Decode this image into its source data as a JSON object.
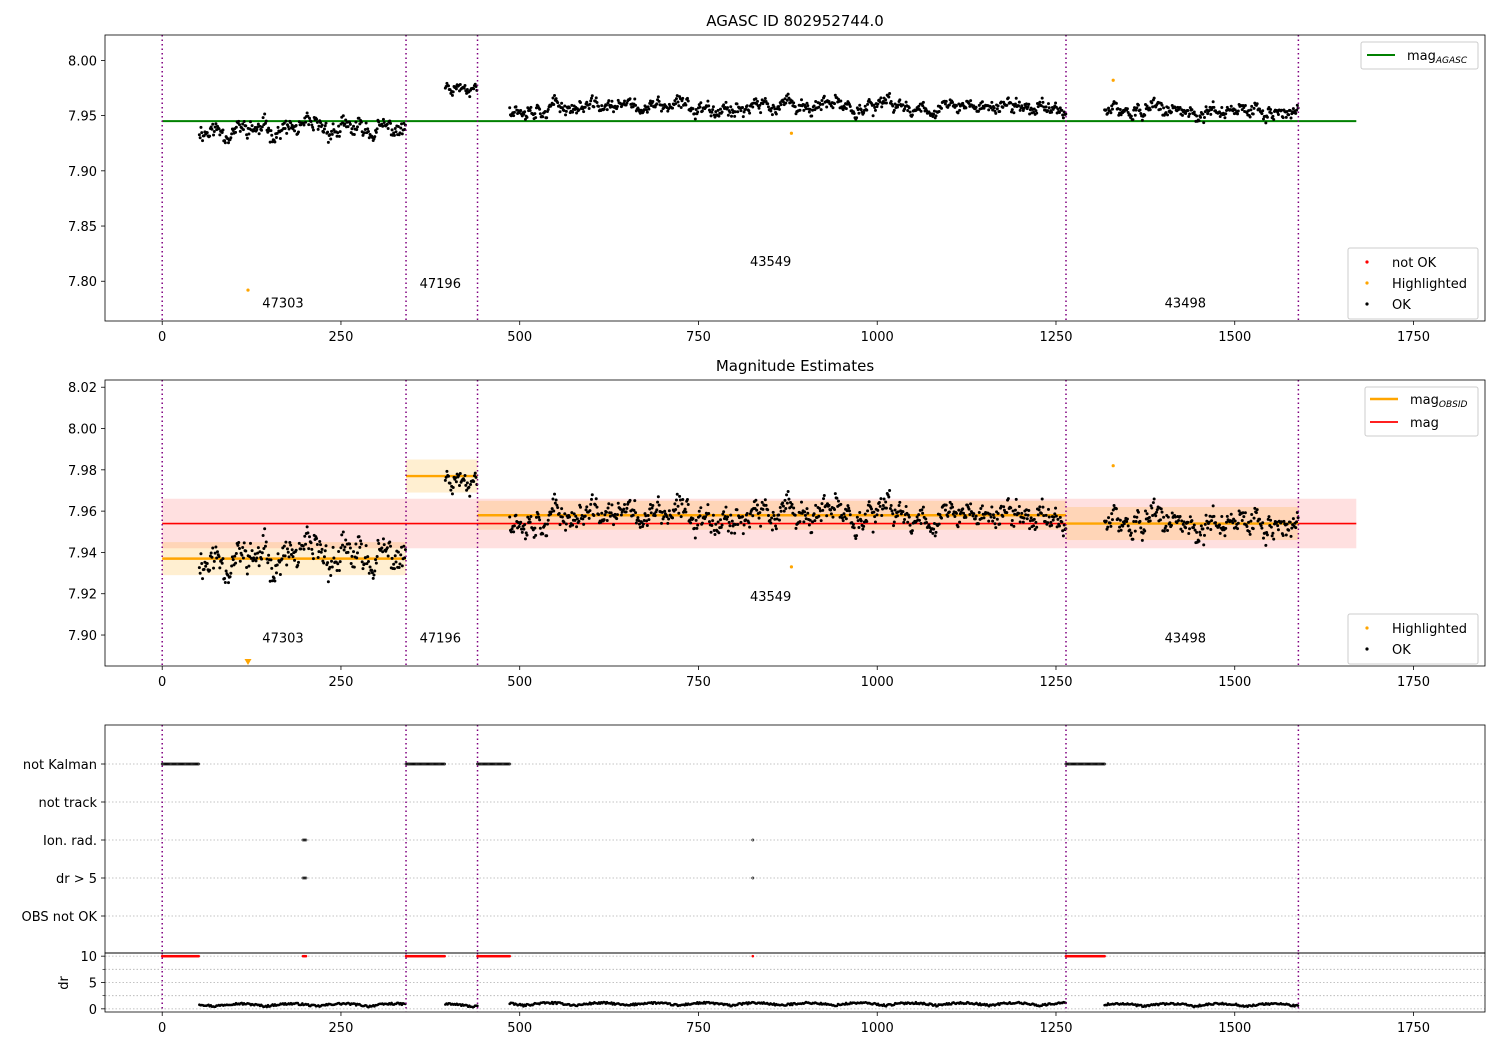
{
  "chart_data": [
    {
      "type": "scatter",
      "title": "AGASC ID 802952744.0",
      "xlabel": "",
      "ylabel": "",
      "xlim": [
        -80,
        1850
      ],
      "ylim": [
        7.764,
        8.023
      ],
      "x_ticks": [
        0,
        250,
        500,
        750,
        1000,
        1250,
        1500,
        1750
      ],
      "y_ticks": [
        7.8,
        7.85,
        7.9,
        7.95,
        8.0
      ],
      "reference_lines": [
        {
          "name": "mag",
          "subscript": "AGASC",
          "value": 7.945,
          "color": "#008000"
        }
      ],
      "obsid_boundaries": [
        0,
        341,
        441,
        1264,
        1589
      ],
      "obsid_labels": [
        {
          "text": "47303",
          "x": 140,
          "y": 7.776
        },
        {
          "text": "47196",
          "x": 360,
          "y": 7.794
        },
        {
          "text": "43549",
          "x": 822,
          "y": 7.814
        },
        {
          "text": "43498",
          "x": 1402,
          "y": 7.776
        }
      ],
      "highlighted_points": [
        [
          120,
          7.792
        ],
        [
          880,
          7.934
        ],
        [
          1330,
          7.982
        ]
      ],
      "legend_points": [
        {
          "label": "not OK",
          "color": "#ff0000"
        },
        {
          "label": "Highlighted",
          "color": "#ffa500"
        },
        {
          "label": "OK",
          "color": "#000000"
        }
      ],
      "legend_placement": "lower-right",
      "line_legend_placement": "upper-right",
      "grid": false
    },
    {
      "type": "scatter",
      "title": "Magnitude Estimates",
      "xlabel": "",
      "ylabel": "",
      "xlim": [
        -80,
        1850
      ],
      "ylim": [
        7.885,
        8.0235
      ],
      "x_ticks": [
        0,
        250,
        500,
        750,
        1000,
        1250,
        1500,
        1750
      ],
      "y_ticks": [
        7.9,
        7.92,
        7.94,
        7.96,
        7.98,
        8.0,
        8.02
      ],
      "mean_mag": {
        "name": "mag",
        "value": 7.954,
        "band": [
          7.942,
          7.966
        ],
        "xmax": 1670,
        "color": "#ff0000"
      },
      "obsid_mags": {
        "name": "mag",
        "subscript": "OBSID",
        "color": "#ffa500",
        "segments": [
          {
            "x0": 0,
            "x1": 341,
            "value": 7.937,
            "band": [
              7.929,
              7.945
            ]
          },
          {
            "x0": 341,
            "x1": 441,
            "value": 7.977,
            "band": [
              7.969,
              7.985
            ]
          },
          {
            "x0": 441,
            "x1": 1264,
            "value": 7.958,
            "band": [
              7.951,
              7.965
            ]
          },
          {
            "x0": 1264,
            "x1": 1589,
            "value": 7.954,
            "band": [
              7.946,
              7.962
            ]
          }
        ]
      },
      "obsid_boundaries": [
        0,
        341,
        441,
        1264,
        1589
      ],
      "obsid_labels": [
        {
          "text": "47303",
          "x": 140,
          "y": 7.8965
        },
        {
          "text": "47196",
          "x": 360,
          "y": 7.8965
        },
        {
          "text": "43549",
          "x": 822,
          "y": 7.9165
        },
        {
          "text": "43498",
          "x": 1402,
          "y": 7.8965
        }
      ],
      "highlighted_points": [
        [
          120,
          7.886
        ],
        [
          880,
          7.933
        ],
        [
          1330,
          7.982
        ]
      ],
      "legend_points": [
        {
          "label": "Highlighted",
          "color": "#ffa500"
        },
        {
          "label": "OK",
          "color": "#000000"
        }
      ],
      "legend_placement": "lower-right",
      "line_legend_placement": "upper-right",
      "grid": false
    },
    {
      "type": "scatter",
      "title": "",
      "xlim": [
        -80,
        1850
      ],
      "categories": [
        "OBS not OK",
        "dr > 5",
        "Ion. rad.",
        "not track",
        "not Kalman"
      ],
      "flag_ranges": [
        {
          "flag": "not Kalman",
          "x0": 0,
          "x1": 52
        },
        {
          "flag": "not Kalman",
          "x0": 341,
          "x1": 396
        },
        {
          "flag": "not Kalman",
          "x0": 441,
          "x1": 486
        },
        {
          "flag": "not Kalman",
          "x0": 1264,
          "x1": 1318
        }
      ],
      "flag_points": [
        {
          "flag": "Ion. rad.",
          "x": [
            197,
            199,
            201,
            826
          ]
        },
        {
          "flag": "dr > 5",
          "x": [
            197,
            199,
            201,
            826
          ]
        }
      ],
      "obsid_boundaries": [
        0,
        341,
        441,
        1264,
        1589
      ],
      "grid": true
    },
    {
      "type": "scatter",
      "title": "",
      "xlabel": "",
      "ylabel": "dr",
      "xlim": [
        -80,
        1850
      ],
      "ylim": [
        -0.6,
        10.6
      ],
      "x_ticks": [
        0,
        250,
        500,
        750,
        1000,
        1250,
        1500,
        1750
      ],
      "y_ticks": [
        0,
        5,
        10
      ],
      "clipped_value": 10,
      "clipped_ranges": [
        [
          0,
          52
        ],
        [
          341,
          396
        ],
        [
          441,
          486
        ],
        [
          1264,
          1318
        ]
      ],
      "clipped_points": [
        197,
        199,
        201,
        826
      ],
      "dr_segments": [
        {
          "x0": 52,
          "x1": 341,
          "base": 0.3
        },
        {
          "x0": 396,
          "x1": 441,
          "base": 0.25
        },
        {
          "x0": 486,
          "x1": 1264,
          "base": 0.45
        },
        {
          "x0": 1318,
          "x1": 1589,
          "base": 0.3
        }
      ],
      "obsid_boundaries": [
        0,
        341,
        441,
        1264,
        1589
      ],
      "grid": true
    }
  ],
  "segments": [
    {
      "x0": 52,
      "x1": 341,
      "mean": 7.937,
      "amp": 0.01,
      "seed": 11
    },
    {
      "x0": 396,
      "x1": 441,
      "mean": 7.977,
      "amp": 0.006,
      "seed": 23
    },
    {
      "x0": 486,
      "x1": 1264,
      "mean": 7.958,
      "amp": 0.008,
      "seed": 37
    },
    {
      "x0": 1318,
      "x1": 1589,
      "mean": 7.954,
      "amp": 0.008,
      "seed": 51
    }
  ]
}
